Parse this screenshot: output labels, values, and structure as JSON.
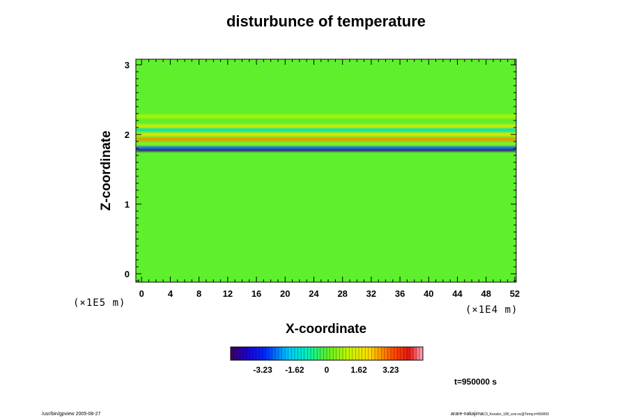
{
  "chart_data": {
    "type": "heatmap",
    "title": "disturbunce of temperature",
    "xlabel": "X-coordinate",
    "ylabel": "Z-coordinate",
    "x_ticks": [
      "0",
      "4",
      "8",
      "12",
      "16",
      "20",
      "24",
      "28",
      "32",
      "36",
      "40",
      "44",
      "48",
      "52"
    ],
    "y_ticks": [
      "0",
      "1",
      "2",
      "3"
    ],
    "xlim": [
      -0.8,
      52.2
    ],
    "ylim": [
      -0.12,
      3.08
    ],
    "x_scale_label": "(×1E4 m)",
    "y_scale_label": "(×1E5 m)",
    "colorbar": {
      "tick_labels": [
        "-3.23",
        "-1.62",
        "0",
        "1.62",
        "3.23"
      ],
      "tick_values": [
        -3.23,
        -1.62,
        0,
        1.62,
        3.23
      ],
      "range": [
        -4.85,
        4.85
      ]
    },
    "field_bands": [
      {
        "z": 1.78,
        "value": -4.4,
        "desc": "cold band"
      },
      {
        "z": 1.82,
        "value": -2.6
      },
      {
        "z": 1.86,
        "value": 0.6
      },
      {
        "z": 1.93,
        "value": 2.8,
        "desc": "warm band"
      },
      {
        "z": 2.0,
        "value": 1.8
      },
      {
        "z": 2.07,
        "value": -1.4
      },
      {
        "z": 2.12,
        "value": 1.6
      },
      {
        "z": 2.26,
        "value": 1.0
      }
    ],
    "background_value": 0.0,
    "time_label": "t=950000 s"
  },
  "footer": {
    "left": "/usr/bin/gpview 2005-08-27",
    "right_main": "arare-nakajima",
    "right_small": "C3_Kessler_180_exe.nc@Temp,t=950000"
  }
}
